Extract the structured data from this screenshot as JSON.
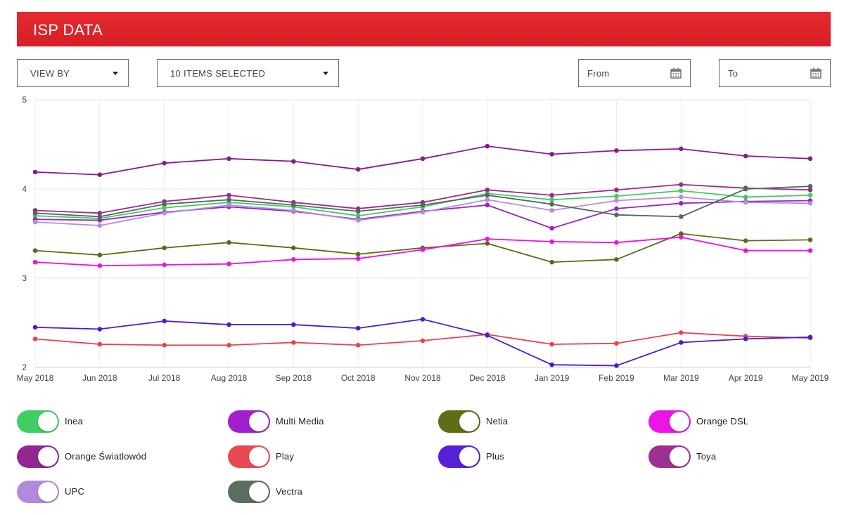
{
  "header": {
    "title": "ISP DATA"
  },
  "controls": {
    "view_by": "VIEW BY",
    "items_selected": "10 ITEMS SELECTED",
    "from_placeholder": "From",
    "to_placeholder": "To"
  },
  "chart_data": {
    "type": "line",
    "categories": [
      "May 2018",
      "Jun 2018",
      "Jul 2018",
      "Aug 2018",
      "Sep 2018",
      "Oct 2018",
      "Nov 2018",
      "Dec 2018",
      "Jan 2019",
      "Feb 2019",
      "Mar 2019",
      "Apr 2019",
      "May 2019"
    ],
    "ylim": [
      2,
      5
    ],
    "yticks": [
      2,
      3,
      4,
      5
    ],
    "grid": true,
    "series": [
      {
        "name": "Inea",
        "color": "#3fcc5f",
        "values": [
          3.7,
          3.67,
          3.79,
          3.85,
          3.8,
          3.7,
          3.8,
          3.95,
          3.88,
          3.92,
          3.98,
          3.91,
          3.93
        ]
      },
      {
        "name": "Multi Media",
        "color": "#9b21c9",
        "values": [
          3.66,
          3.65,
          3.74,
          3.8,
          3.75,
          3.66,
          3.75,
          3.82,
          3.56,
          3.78,
          3.84,
          3.86,
          3.87
        ]
      },
      {
        "name": "Netia",
        "color": "#5c6b12",
        "values": [
          3.31,
          3.26,
          3.34,
          3.4,
          3.34,
          3.27,
          3.34,
          3.39,
          3.18,
          3.21,
          3.5,
          3.42,
          3.43
        ]
      },
      {
        "name": "Orange DSL",
        "color": "#ee10e6",
        "values": [
          3.18,
          3.14,
          3.15,
          3.16,
          3.21,
          3.22,
          3.32,
          3.44,
          3.41,
          3.4,
          3.46,
          3.31,
          3.31
        ]
      },
      {
        "name": "Orange Światlowód",
        "color": "#8a1a8e",
        "values": [
          4.19,
          4.16,
          4.29,
          4.34,
          4.31,
          4.22,
          4.34,
          4.48,
          4.39,
          4.43,
          4.45,
          4.37,
          4.34
        ]
      },
      {
        "name": "Play",
        "color": "#e8434d",
        "values": [
          2.32,
          2.26,
          2.25,
          2.25,
          2.28,
          2.25,
          2.3,
          2.37,
          2.26,
          2.27,
          2.39,
          2.35,
          2.33
        ]
      },
      {
        "name": "Plus",
        "color": "#4a1bd4",
        "values": [
          2.45,
          2.43,
          2.52,
          2.48,
          2.48,
          2.44,
          2.54,
          2.36,
          2.03,
          2.02,
          2.28,
          2.32,
          2.34
        ]
      },
      {
        "name": "Toya",
        "color": "#9a2a8e",
        "values": [
          3.76,
          3.73,
          3.86,
          3.93,
          3.85,
          3.78,
          3.85,
          3.99,
          3.93,
          3.99,
          4.05,
          4.01,
          3.99
        ]
      },
      {
        "name": "UPC",
        "color": "#b48de0",
        "values": [
          3.63,
          3.59,
          3.73,
          3.82,
          3.76,
          3.65,
          3.74,
          3.88,
          3.76,
          3.87,
          3.91,
          3.85,
          3.84
        ]
      },
      {
        "name": "Vectra",
        "color": "#4f6b57",
        "values": [
          3.73,
          3.69,
          3.83,
          3.88,
          3.82,
          3.75,
          3.82,
          3.93,
          3.83,
          3.71,
          3.69,
          4.0,
          4.03
        ]
      }
    ]
  },
  "legend": [
    {
      "label": "Inea",
      "color": "#40cd63",
      "enabled": true
    },
    {
      "label": "Multi Media",
      "color": "#a11fcf",
      "enabled": true
    },
    {
      "label": "Netia",
      "color": "#5f6c18",
      "enabled": true
    },
    {
      "label": "Orange DSL",
      "color": "#ee14e8",
      "enabled": true
    },
    {
      "label": "Orange Światlowód",
      "color": "#912795",
      "enabled": true
    },
    {
      "label": "Play",
      "color": "#e94a52",
      "enabled": true
    },
    {
      "label": "Plus",
      "color": "#5621d6",
      "enabled": true
    },
    {
      "label": "Toya",
      "color": "#9c3191",
      "enabled": true
    },
    {
      "label": "UPC",
      "color": "#b28adb",
      "enabled": true
    },
    {
      "label": "Vectra",
      "color": "#5a6f5e",
      "enabled": true
    }
  ]
}
